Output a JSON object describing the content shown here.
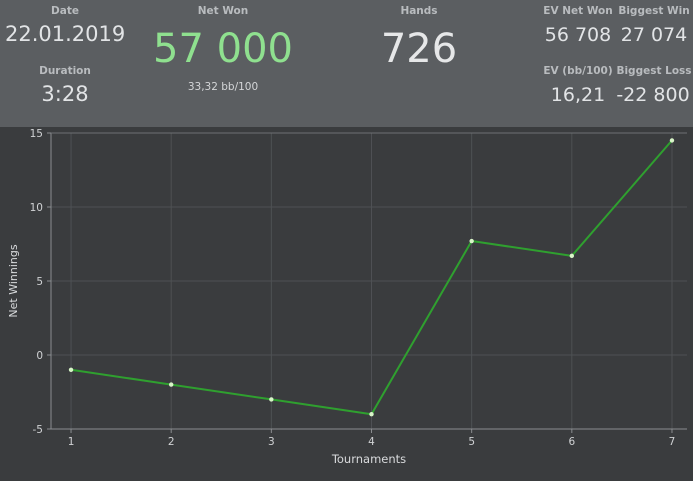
{
  "stats": {
    "date_label": "Date",
    "date_value": "22.01.2019",
    "duration_label": "Duration",
    "duration_value": "3:28",
    "net_won_label": "Net Won",
    "net_won_value": "57 000",
    "net_won_sub": "33,32 bb/100",
    "hands_label": "Hands",
    "hands_value": "726",
    "ev_net_won_label": "EV Net Won",
    "ev_net_won_value": "56 708",
    "biggest_win_label": "Biggest Win",
    "biggest_win_value": "27 074",
    "ev_bb_label": "EV (bb/100)",
    "ev_bb_value": "16,21",
    "biggest_loss_label": "Biggest Loss",
    "biggest_loss_value": "-22 800"
  },
  "colors": {
    "header_bg": "#5b5e61",
    "net_won": "#8fe08f",
    "line": "#2fa02f",
    "point": "#d8f5c8"
  },
  "chart_data": {
    "type": "line",
    "xlabel": "Tournaments",
    "ylabel": "Net Winnings",
    "x": [
      1,
      2,
      3,
      4,
      5,
      6,
      7
    ],
    "series": [
      {
        "values": [
          -1,
          -2,
          -3,
          -4,
          7.7,
          6.7,
          14.5
        ]
      }
    ],
    "xlim": [
      0.8,
      7.15
    ],
    "ylim": [
      -5,
      15
    ],
    "x_ticks": [
      "1",
      "2",
      "3",
      "4",
      "5",
      "6",
      "7"
    ],
    "y_ticks": [
      "-5",
      "0",
      "5",
      "10",
      "15"
    ],
    "grid": true,
    "legend": "none"
  }
}
